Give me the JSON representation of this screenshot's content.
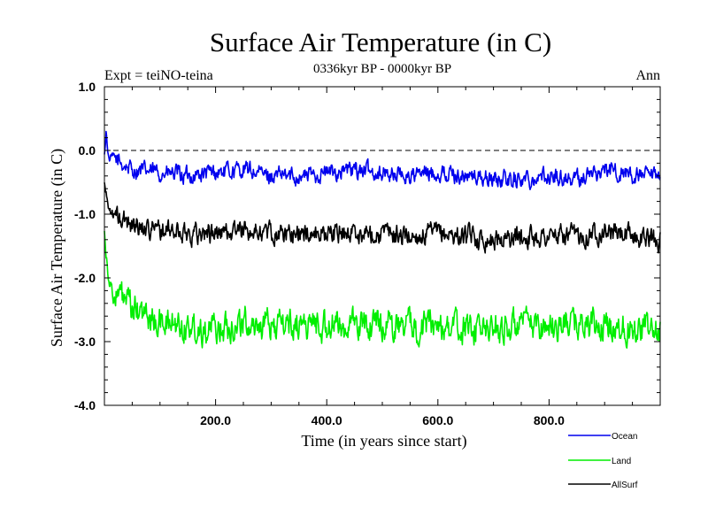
{
  "chart_data": {
    "type": "line",
    "title": "Surface Air Temperature (in C)",
    "subtitle": "0336kyr BP - 0000kyr BP",
    "experiment_label": "Expt = teiNO-teina",
    "season_label": "Ann",
    "xlabel": "Time (in years since start)",
    "ylabel": "Surface Air Temperature (in C)",
    "xlim": [
      0,
      1000
    ],
    "ylim": [
      -4.0,
      1.0
    ],
    "x_ticks": [
      200,
      400,
      600,
      800
    ],
    "x_tick_labels": [
      "200.0",
      "400.0",
      "600.0",
      "800.0"
    ],
    "y_ticks": [
      1.0,
      0.0,
      -1.0,
      -2.0,
      -3.0,
      -4.0
    ],
    "y_tick_labels": [
      "1.0",
      "0.0",
      "-1.0",
      "-2.0",
      "-3.0",
      "-4.0"
    ],
    "reference_line": 0.0,
    "legend_position": "bottom-right, below plot",
    "series": [
      {
        "name": "Ocean",
        "color": "#0000ee",
        "x": [
          0,
          3,
          8,
          15,
          30,
          50,
          100,
          150,
          200,
          250,
          300,
          350,
          400,
          450,
          500,
          550,
          600,
          650,
          700,
          750,
          800,
          850,
          900,
          950,
          1000
        ],
        "values": [
          -0.1,
          0.3,
          -0.15,
          -0.1,
          -0.2,
          -0.3,
          -0.35,
          -0.4,
          -0.35,
          -0.3,
          -0.4,
          -0.4,
          -0.35,
          -0.3,
          -0.35,
          -0.4,
          -0.35,
          -0.4,
          -0.45,
          -0.45,
          -0.4,
          -0.45,
          -0.3,
          -0.4,
          -0.45
        ]
      },
      {
        "name": "Land",
        "color": "#00ee00",
        "x": [
          0,
          3,
          8,
          15,
          30,
          50,
          100,
          150,
          200,
          250,
          300,
          350,
          400,
          450,
          500,
          550,
          600,
          650,
          700,
          750,
          800,
          850,
          900,
          950,
          1000
        ],
        "values": [
          -1.2,
          -1.6,
          -2.0,
          -2.3,
          -2.3,
          -2.5,
          -2.7,
          -2.75,
          -2.8,
          -2.7,
          -2.75,
          -2.7,
          -2.75,
          -2.75,
          -2.7,
          -2.75,
          -2.75,
          -2.8,
          -2.8,
          -2.75,
          -2.75,
          -2.7,
          -2.8,
          -2.75,
          -2.85
        ]
      },
      {
        "name": "AllSurf",
        "color": "#000000",
        "x": [
          0,
          3,
          8,
          15,
          30,
          50,
          100,
          150,
          200,
          250,
          300,
          350,
          400,
          450,
          500,
          550,
          600,
          650,
          700,
          750,
          800,
          850,
          900,
          950,
          1000
        ],
        "values": [
          -0.5,
          -0.7,
          -0.9,
          -1.0,
          -1.1,
          -1.15,
          -1.25,
          -1.3,
          -1.3,
          -1.25,
          -1.3,
          -1.3,
          -1.3,
          -1.3,
          -1.3,
          -1.35,
          -1.3,
          -1.35,
          -1.4,
          -1.35,
          -1.35,
          -1.35,
          -1.25,
          -1.35,
          -1.4
        ]
      }
    ]
  }
}
